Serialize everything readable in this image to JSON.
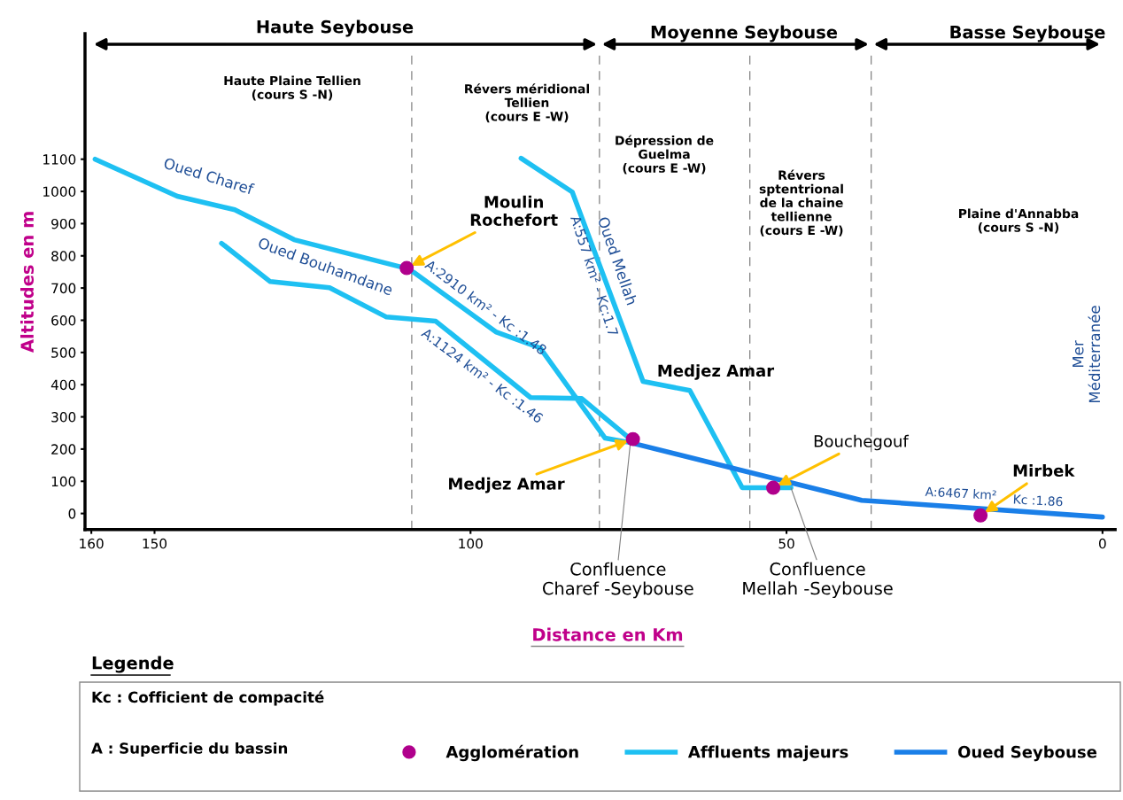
{
  "chart_data": {
    "type": "line",
    "ylabel": "Altitudes en m",
    "legend_title": "Legende",
    "xlim": [
      161,
      -2
    ],
    "ylim": [
      -50,
      1490
    ],
    "xticks": [
      160,
      150,
      100,
      50,
      0
    ],
    "yticks": [
      0,
      100,
      200,
      300,
      400,
      500,
      600,
      700,
      800,
      900,
      1000,
      1100
    ],
    "grid": false,
    "legend": "bottom",
    "series": [
      {
        "name": "Agglomération",
        "type": "scatter",
        "color": "#b0008c",
        "marker": "circle",
        "x": [
          110.1,
          74.3,
          52.1,
          19.3
        ],
        "values": [
          762,
          231,
          80,
          -6
        ]
      },
      {
        "name": "Affluents majeurs",
        "color": "#1ec0f2",
        "x": [
          159.4,
          146.4,
          137.3,
          127.9,
          110.3,
          108.9,
          96.0,
          89.0,
          78.7,
          74.7,
          null,
          139.4,
          131.7,
          122.3,
          113.3,
          105.5,
          90.5,
          82.4,
          74.7,
          null,
          92.0,
          83.9,
          72.7,
          65.3,
          57.0,
          49.3
        ],
        "values": [
          1100,
          985,
          943,
          850,
          762,
          748,
          564,
          514,
          234,
          220,
          null,
          839,
          720,
          701,
          610,
          597,
          360,
          357,
          231,
          null,
          1103,
          998,
          410,
          382,
          80,
          80
        ]
      },
      {
        "name": "Oued Seybouse",
        "color": "#1a7fe8",
        "x": [
          74.7,
          38.1,
          0
        ],
        "values": [
          220,
          41,
          -11
        ]
      }
    ],
    "ref_lines": [
      {
        "axis": "x",
        "value": 109.3,
        "label": null,
        "color": "#808080",
        "line_style": "dashed"
      },
      {
        "axis": "x",
        "value": 79.6,
        "label": null,
        "color": "#808080",
        "line_style": "dashed"
      },
      {
        "axis": "x",
        "value": 55.8,
        "label": null,
        "color": "#808080",
        "line_style": "dashed"
      },
      {
        "axis": "x",
        "value": 36.6,
        "label": null,
        "color": "#808080",
        "line_style": "dashed"
      }
    ],
    "annotations": [
      "Haute Plaine Tellien\n(cours S -N)",
      "Révers méridional\nTellien\n(cours E -W)",
      "Dépression de\nGuelma\n(cours E -W)",
      "Révers\nsptentrional\nde la chaine\ntellienne\n(cours E -W)",
      "Plaine d'Annabba\n(cours S -N)",
      "Oued Charef",
      "Oued Bouhamdane",
      "A:2910 km² - Kc :1.48",
      "A:1124 km² - Kc :1.46",
      "Oued Mellah",
      "A:557 km² - Kc:1.7",
      "A:6467 km²",
      "Kc :1.86",
      "Mer\nMéditerranée",
      "Medjez Amar",
      "Haute Seybouse",
      "Moyenne Seybouse",
      "Basse Seybouse",
      "Distance en Km",
      "Kc : Cofficient de compacité",
      "A : Superficie du bassin",
      {
        "text": "Moulin\nRochefort",
        "x": 110.1,
        "y": 762
      },
      {
        "text": "Medjez Amar",
        "x": 74.3,
        "y": 231
      },
      {
        "text": "Bouchegouf",
        "x": 52.1,
        "y": 80
      },
      {
        "text": "Mirbek",
        "x": 19.3,
        "y": -6
      },
      {
        "text": "Confluence\nCharef -Seybouse",
        "x": 74.7,
        "y": 220
      },
      {
        "text": "Confluence\nMellah -Seybouse",
        "x": 49.3,
        "y": 80
      }
    ]
  }
}
